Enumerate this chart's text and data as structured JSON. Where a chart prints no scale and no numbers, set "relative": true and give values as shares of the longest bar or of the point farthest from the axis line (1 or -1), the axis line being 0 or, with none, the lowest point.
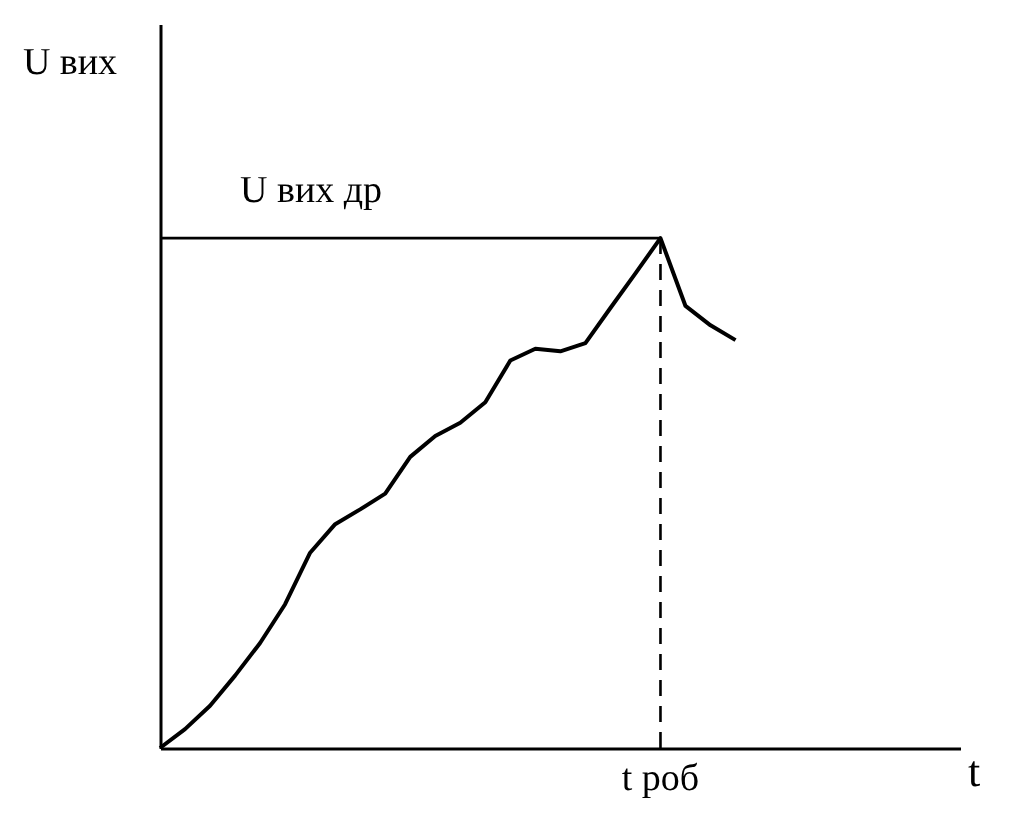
{
  "chart_data": {
    "type": "line",
    "relative": true,
    "xlabel": "t",
    "ylabel": "U вих",
    "color": "#000000",
    "marker": "none",
    "line_style": "solid",
    "categories": [
      null,
      null,
      null,
      null,
      null,
      null,
      null,
      null,
      null,
      null,
      null,
      null,
      null,
      null,
      null,
      null,
      null,
      null,
      null,
      null,
      null,
      null,
      null,
      null
    ],
    "annotations": [
      {
        "text": "t роб",
        "y": 1
      }
    ],
    "values": [
      0,
      0.037,
      0.083,
      0.142,
      0.206,
      0.282,
      0.383,
      0.439,
      0.468,
      0.499,
      0.571,
      0.612,
      0.638,
      0.678,
      0.76,
      0.783,
      0.778,
      0.794,
      0.863,
      0.931,
      1,
      0.867,
      0.829,
      0.8
    ],
    "ref_lines": [
      {
        "axis": "y",
        "value": 1,
        "label": "U вих др",
        "line_style": "solid",
        "color": "#000000"
      }
    ]
  }
}
